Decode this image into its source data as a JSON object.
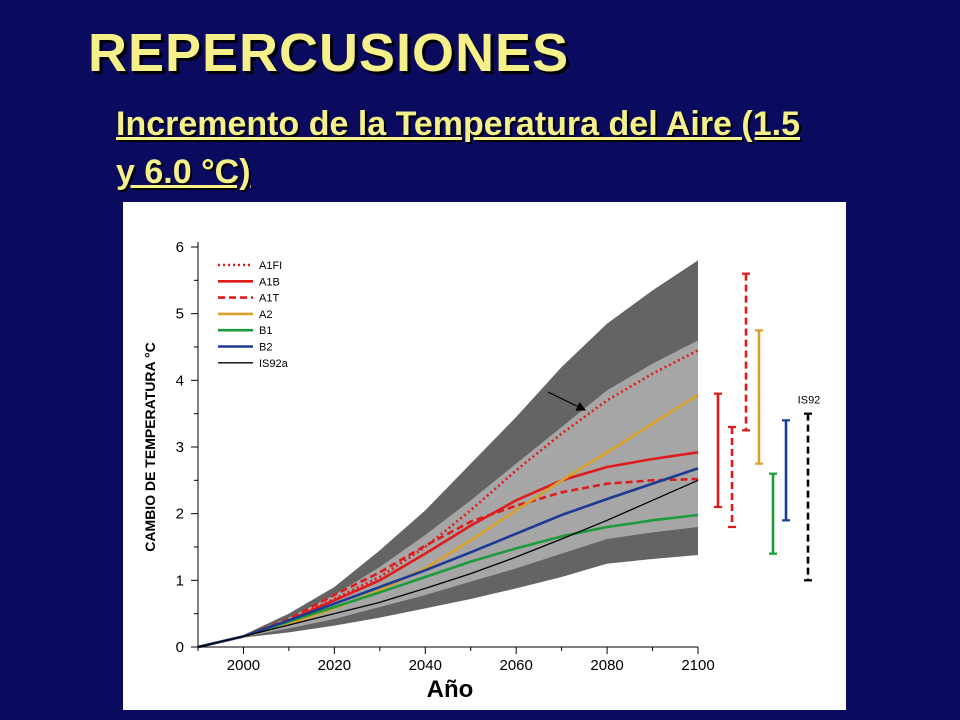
{
  "slide": {
    "title": "REPERCUSIONES",
    "subtitle_line1": "Incremento de la Temperatura del Aire (1.5",
    "subtitle_line2": "y 6.0 °C)"
  },
  "chart_data": {
    "type": "line",
    "title": "",
    "xlabel": "Año",
    "ylabel": "CAMBIO DE TEMPERATURA °C",
    "xlim": [
      1990,
      2100
    ],
    "ylim": [
      0,
      6
    ],
    "xticks": [
      2000,
      2020,
      2040,
      2060,
      2080,
      2100
    ],
    "yticks": [
      0,
      1,
      2,
      3,
      4,
      5,
      6
    ],
    "grid": false,
    "legend_position": "top-left",
    "colors": {
      "outer_envelope": "#646464",
      "inner_envelope": "#a6a6a6",
      "A1FI": "#e01b1b",
      "A1B": "#e01b1b",
      "A1T": "#e01b1b",
      "A2": "#d9a12a",
      "B1": "#1d9a3c",
      "B2": "#1b3a93",
      "IS92a": "#000000"
    },
    "x": [
      1990,
      2000,
      2010,
      2020,
      2030,
      2040,
      2050,
      2060,
      2070,
      2080,
      2090,
      2100
    ],
    "series": [
      {
        "name": "A1FI",
        "style": "dotted",
        "values": [
          0.0,
          0.16,
          0.4,
          0.72,
          1.05,
          1.5,
          2.05,
          2.65,
          3.2,
          3.7,
          4.1,
          4.45
        ]
      },
      {
        "name": "A1B",
        "style": "solid",
        "values": [
          0.0,
          0.16,
          0.4,
          0.7,
          1.0,
          1.4,
          1.82,
          2.2,
          2.5,
          2.7,
          2.82,
          2.92
        ]
      },
      {
        "name": "A1T",
        "style": "dashed",
        "values": [
          0.0,
          0.16,
          0.42,
          0.78,
          1.12,
          1.52,
          1.88,
          2.12,
          2.32,
          2.45,
          2.5,
          2.52
        ]
      },
      {
        "name": "A2",
        "style": "solid",
        "values": [
          0.0,
          0.16,
          0.35,
          0.58,
          0.85,
          1.18,
          1.6,
          2.05,
          2.5,
          2.92,
          3.35,
          3.78
        ]
      },
      {
        "name": "B1",
        "style": "solid",
        "values": [
          0.0,
          0.16,
          0.38,
          0.6,
          0.82,
          1.05,
          1.28,
          1.48,
          1.66,
          1.8,
          1.9,
          1.98
        ]
      },
      {
        "name": "B2",
        "style": "solid",
        "values": [
          0.0,
          0.16,
          0.4,
          0.65,
          0.9,
          1.15,
          1.42,
          1.7,
          1.98,
          2.22,
          2.45,
          2.68
        ]
      },
      {
        "name": "IS92a",
        "style": "solid",
        "values": [
          0.0,
          0.16,
          0.33,
          0.5,
          0.67,
          0.88,
          1.1,
          1.35,
          1.62,
          1.9,
          2.2,
          2.5
        ]
      }
    ],
    "envelopes": [
      {
        "level": "outer",
        "lower": [
          0.0,
          0.14,
          0.22,
          0.32,
          0.44,
          0.58,
          0.72,
          0.88,
          1.05,
          1.25,
          1.32,
          1.38
        ],
        "upper": [
          0.0,
          0.18,
          0.5,
          0.9,
          1.45,
          2.05,
          2.75,
          3.45,
          4.2,
          4.85,
          5.35,
          5.8
        ]
      },
      {
        "level": "inner",
        "lower": [
          0.0,
          0.15,
          0.28,
          0.42,
          0.6,
          0.78,
          0.98,
          1.18,
          1.4,
          1.62,
          1.72,
          1.8
        ],
        "upper": [
          0.0,
          0.17,
          0.44,
          0.78,
          1.2,
          1.68,
          2.2,
          2.75,
          3.3,
          3.85,
          4.25,
          4.6
        ]
      }
    ],
    "range_bars": [
      {
        "name": "A1FI",
        "style": "dashed",
        "low": 3.25,
        "high": 5.6
      },
      {
        "name": "A1B",
        "style": "solid",
        "low": 2.1,
        "high": 3.8
      },
      {
        "name": "A1T",
        "style": "dashed",
        "low": 1.8,
        "high": 3.3
      },
      {
        "name": "A2",
        "style": "solid",
        "low": 2.75,
        "high": 4.75
      },
      {
        "name": "B1",
        "style": "solid",
        "low": 1.4,
        "high": 2.6
      },
      {
        "name": "B2",
        "style": "solid",
        "low": 1.9,
        "high": 3.4
      },
      {
        "name": "IS92",
        "label": "IS92",
        "style": "dashed",
        "low": 1.0,
        "high": 3.5
      }
    ]
  }
}
